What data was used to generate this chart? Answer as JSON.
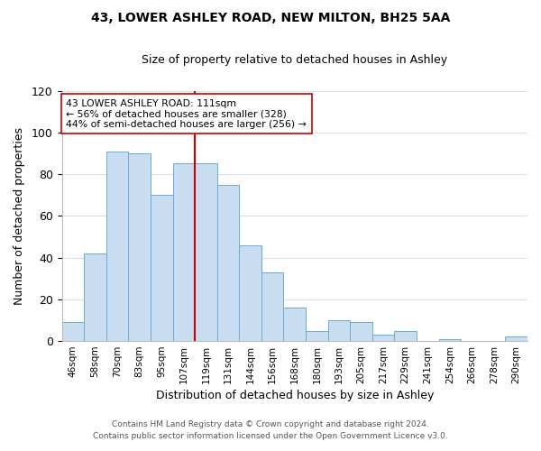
{
  "title1": "43, LOWER ASHLEY ROAD, NEW MILTON, BH25 5AA",
  "title2": "Size of property relative to detached houses in Ashley",
  "xlabel": "Distribution of detached houses by size in Ashley",
  "ylabel": "Number of detached properties",
  "bar_labels": [
    "46sqm",
    "58sqm",
    "70sqm",
    "83sqm",
    "95sqm",
    "107sqm",
    "119sqm",
    "131sqm",
    "144sqm",
    "156sqm",
    "168sqm",
    "180sqm",
    "193sqm",
    "205sqm",
    "217sqm",
    "229sqm",
    "241sqm",
    "254sqm",
    "266sqm",
    "278sqm",
    "290sqm"
  ],
  "bar_values": [
    9,
    42,
    91,
    90,
    70,
    85,
    85,
    75,
    46,
    33,
    16,
    5,
    10,
    9,
    3,
    5,
    0,
    1,
    0,
    0,
    2
  ],
  "bar_color": "#c9ddf0",
  "bar_edge_color": "#6aaad4",
  "ylim": [
    0,
    120
  ],
  "yticks": [
    0,
    20,
    40,
    60,
    80,
    100,
    120
  ],
  "property_line_x": 5.5,
  "property_line_color": "#cc0000",
  "annotation_box_color": "#cc0000",
  "annotation_line1": "43 LOWER ASHLEY ROAD: 111sqm",
  "annotation_line2": "← 56% of detached houses are smaller (328)",
  "annotation_line3": "44% of semi-detached houses are larger (256) →",
  "footer1": "Contains HM Land Registry data © Crown copyright and database right 2024.",
  "footer2": "Contains public sector information licensed under the Open Government Licence v3.0.",
  "background_color": "#ffffff",
  "grid_color": "#d5dfe8"
}
